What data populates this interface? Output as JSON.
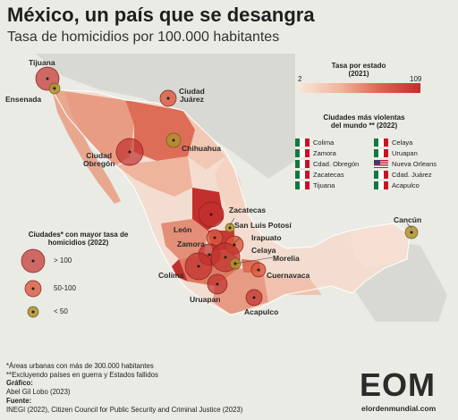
{
  "header": {
    "title": "México, un país que se desangra",
    "subtitle": "Tasa de homicidios por 100.000 habitantes"
  },
  "rate_legend": {
    "title": "Tasa por estado\n(2021)",
    "min": "2",
    "max": "109"
  },
  "violent_cities": {
    "title": "Ciudades más violentas\ndel mundo ** (2022)",
    "items": [
      {
        "name": "Colima",
        "flag": "mexico"
      },
      {
        "name": "Celaya",
        "flag": "mexico"
      },
      {
        "name": "Zamora",
        "flag": "mexico"
      },
      {
        "name": "Uruapan",
        "flag": "mexico"
      },
      {
        "name": "Cdad. Obregón",
        "flag": "mexico"
      },
      {
        "name": "Nueva Orleans",
        "flag": "usa"
      },
      {
        "name": "Zacatecas",
        "flag": "mexico"
      },
      {
        "name": "Cdad. Juárez",
        "flag": "mexico"
      },
      {
        "name": "Tijuana",
        "flag": "mexico"
      },
      {
        "name": "Acapulco",
        "flag": "mexico"
      }
    ]
  },
  "circle_legend": {
    "title": "Ciudades* con mayor tasa de homicidios (2022)",
    "items": [
      {
        "label": "> 100",
        "color": "#c0302e"
      },
      {
        "label": "50-100",
        "color": "#d9573d"
      },
      {
        "label": "< 50",
        "color": "#b09030"
      }
    ]
  },
  "cities": [
    {
      "name": "Tijuana",
      "class": "> 100"
    },
    {
      "name": "Ensenada",
      "class": "< 50"
    },
    {
      "name": "Ciudad\nJuárez",
      "class": "50-100"
    },
    {
      "name": "Ciudad\nObregón",
      "class": "> 100"
    },
    {
      "name": "Chihuahua",
      "class": "< 50"
    },
    {
      "name": "Zacatecas",
      "class": "> 100"
    },
    {
      "name": "San Luis Potosí",
      "class": "< 50"
    },
    {
      "name": "León",
      "class": "50-100"
    },
    {
      "name": "Irapuato",
      "class": "50-100"
    },
    {
      "name": "Zamora",
      "class": "> 100"
    },
    {
      "name": "Celaya",
      "class": "> 100"
    },
    {
      "name": "Morelia",
      "class": "< 50"
    },
    {
      "name": "Colima",
      "class": "> 100"
    },
    {
      "name": "Cuernavaca",
      "class": "50-100"
    },
    {
      "name": "Uruapan",
      "class": "> 100"
    },
    {
      "name": "Acapulco",
      "class": "> 100"
    },
    {
      "name": "Cancún",
      "class": "< 50"
    }
  ],
  "notes": {
    "note1": "*Áreas urbanas con más de 300.000 habitantes",
    "note2": "**Excluyendo países en guerra y Estados fallidos",
    "graphic_label": "Gráfico:",
    "graphic": "Abel Gil Lobo (2023)",
    "source_label": "Fuente:",
    "source": "INEGI (2022), Citizen Council for Public Security and Criminal Justice (2023)"
  },
  "logo": {
    "mark": "EOM",
    "text": "elordenmundial.com"
  },
  "colors": {
    "high": "#c0302e",
    "mid": "#d9573d",
    "low": "#b09030",
    "land": "#f3ddd0",
    "background": "#e9ebe4"
  }
}
